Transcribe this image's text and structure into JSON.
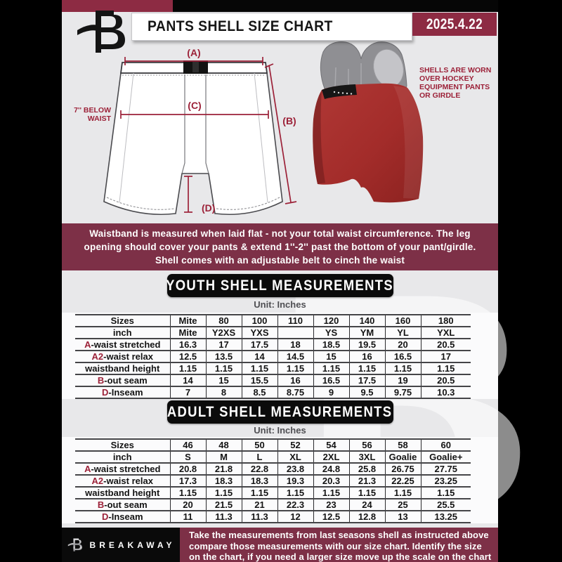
{
  "colors": {
    "maroon": "#7d3047",
    "maroon_bright": "#8d2b43",
    "label_red": "#9c2138",
    "page_gray": "#e8e8ea",
    "shell_red": "#a43230"
  },
  "header": {
    "title": "PANTS SHELL SIZE CHART",
    "date": "2025.4.22"
  },
  "diagram": {
    "label_a": "(A)",
    "label_b": "(B)",
    "label_c": "(C)",
    "label_d": "(D)",
    "below_waist_line1": "7'' BELOW",
    "below_waist_line2": "WAIST",
    "photo_note_lines": [
      "SHELLS ARE WORN",
      "OVER HOCKEY",
      "EQUIPMENT PANTS",
      "OR GIRDLE"
    ]
  },
  "info_banner": {
    "lines": [
      "Waistband is measured when laid flat - not your total waist circumference. The leg",
      "opening should cover your pants & extend 1''-2'' past the bottom of your pant/girdle.",
      "Shell comes with an adjustable belt to cinch the waist"
    ]
  },
  "youth": {
    "banner": "YOUTH SHELL MEASUREMENTS",
    "unit": "Unit: Inches",
    "table": {
      "rows": [
        {
          "prefix": "",
          "label": "Sizes",
          "values": [
            "Mite",
            "80",
            "100",
            "110",
            "120",
            "140",
            "160",
            "180"
          ]
        },
        {
          "prefix": "",
          "label": "inch",
          "values": [
            "Mite",
            "Y2XS",
            "YXS",
            "",
            "YS",
            "YM",
            "YL",
            "YXL"
          ]
        },
        {
          "prefix": "A",
          "label": "-waist stretched",
          "values": [
            "16.3",
            "17",
            "17.5",
            "18",
            "18.5",
            "19.5",
            "20",
            "20.5"
          ]
        },
        {
          "prefix": "A2",
          "label": "-waist relax",
          "values": [
            "12.5",
            "13.5",
            "14",
            "14.5",
            "15",
            "16",
            "16.5",
            "17"
          ]
        },
        {
          "prefix": "",
          "label": "waistband height",
          "values": [
            "1.15",
            "1.15",
            "1.15",
            "1.15",
            "1.15",
            "1.15",
            "1.15",
            "1.15"
          ]
        },
        {
          "prefix": "B",
          "label": "-out seam",
          "values": [
            "14",
            "15",
            "15.5",
            "16",
            "16.5",
            "17.5",
            "19",
            "20.5"
          ]
        },
        {
          "prefix": "D",
          "label": "-Inseam",
          "values": [
            "7",
            "8",
            "8.5",
            "8.75",
            "9",
            "9.5",
            "9.75",
            "10.3"
          ]
        }
      ]
    }
  },
  "adult": {
    "banner": "ADULT SHELL MEASUREMENTS",
    "unit": "Unit: Inches",
    "table": {
      "rows": [
        {
          "prefix": "",
          "label": "Sizes",
          "values": [
            "46",
            "48",
            "50",
            "52",
            "54",
            "56",
            "58",
            "60"
          ]
        },
        {
          "prefix": "",
          "label": "inch",
          "values": [
            "S",
            "M",
            "L",
            "XL",
            "2XL",
            "3XL",
            "Goalie",
            "Goalie+"
          ]
        },
        {
          "prefix": "A",
          "label": "-waist stretched",
          "values": [
            "20.8",
            "21.8",
            "22.8",
            "23.8",
            "24.8",
            "25.8",
            "26.75",
            "27.75"
          ]
        },
        {
          "prefix": "A2",
          "label": "-waist relax",
          "values": [
            "17.3",
            "18.3",
            "18.3",
            "19.3",
            "20.3",
            "21.3",
            "22.25",
            "23.25"
          ]
        },
        {
          "prefix": "",
          "label": "waistband height",
          "values": [
            "1.15",
            "1.15",
            "1.15",
            "1.15",
            "1.15",
            "1.15",
            "1.15",
            "1.15"
          ]
        },
        {
          "prefix": "B",
          "label": "-out seam",
          "values": [
            "20",
            "21.5",
            "21",
            "22.3",
            "23",
            "24",
            "25",
            "25.5"
          ]
        },
        {
          "prefix": "D",
          "label": "-Inseam",
          "values": [
            "11",
            "11.3",
            "11.3",
            "12",
            "12.5",
            "12.8",
            "13",
            "13.25"
          ]
        }
      ]
    }
  },
  "footer": {
    "brand": "BREAKAWAY",
    "lines": [
      "Take the measurements from last seasons shell as instructed above",
      "compare those measurements  with our size chart. Identify the size",
      "on the chart, if you need a larger size move up the scale on the chart"
    ]
  }
}
